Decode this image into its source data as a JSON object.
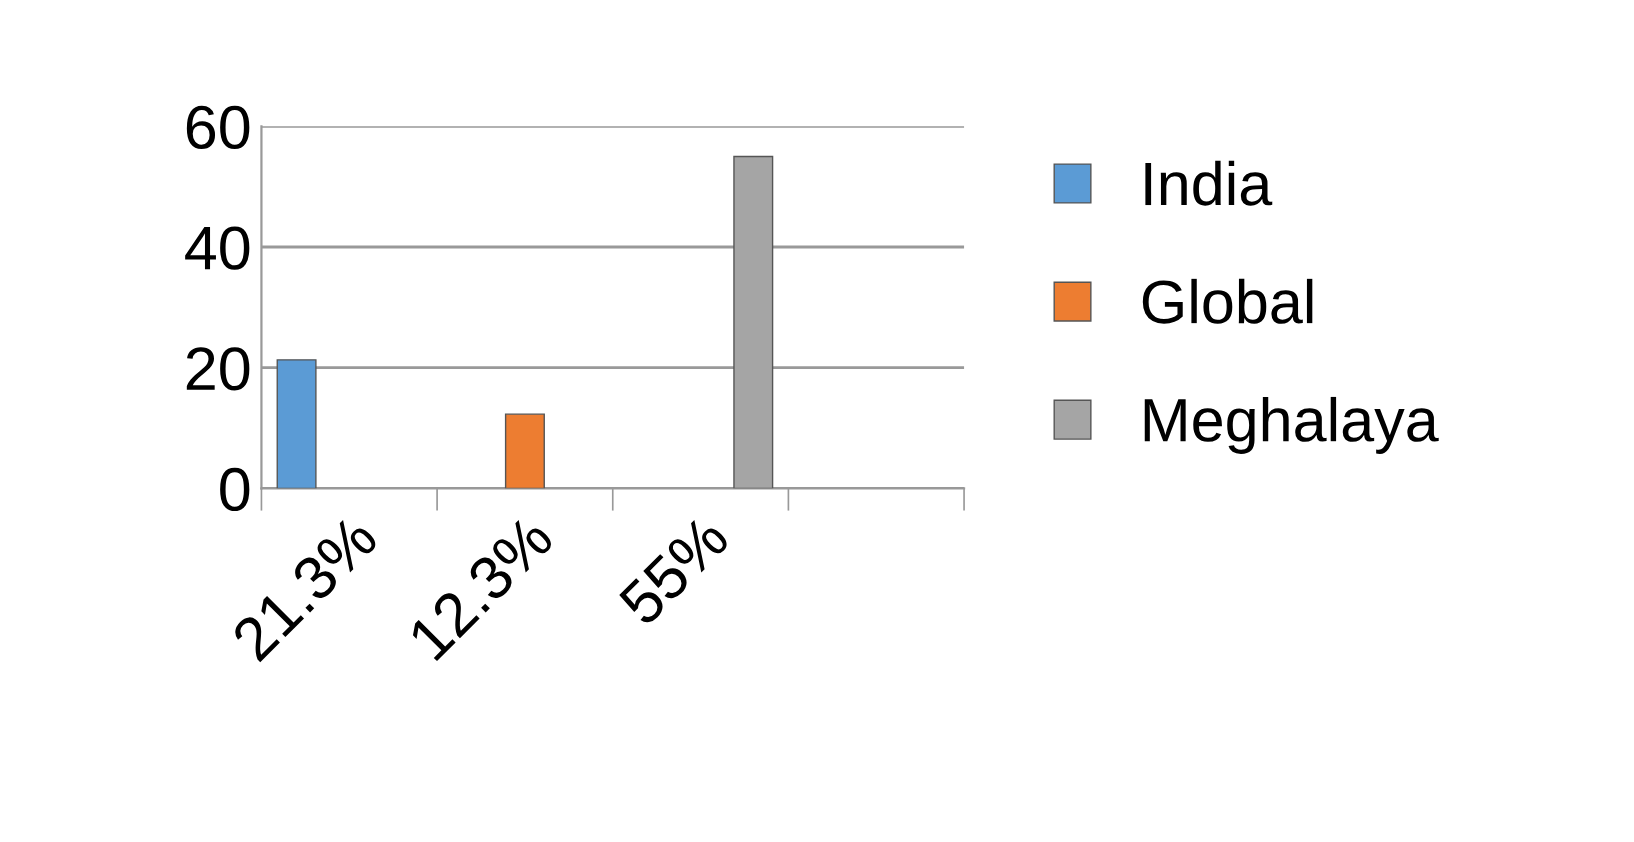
{
  "chart_data": {
    "type": "bar",
    "categories": [
      "21.3%",
      "12.3%",
      "55%",
      null
    ],
    "series": [
      {
        "name": "India",
        "color": "#5b9bd5",
        "values": [
          21.3,
          null,
          null,
          null
        ]
      },
      {
        "name": "Global",
        "color": "#ed7d31",
        "values": [
          null,
          12.3,
          null,
          null
        ]
      },
      {
        "name": "Meghalaya",
        "color": "#a5a5a5",
        "values": [
          null,
          null,
          55,
          null
        ]
      }
    ],
    "ylim": [
      0,
      60
    ],
    "yticks": [
      0,
      20,
      40,
      60
    ],
    "grid": "y",
    "legend": "right"
  }
}
